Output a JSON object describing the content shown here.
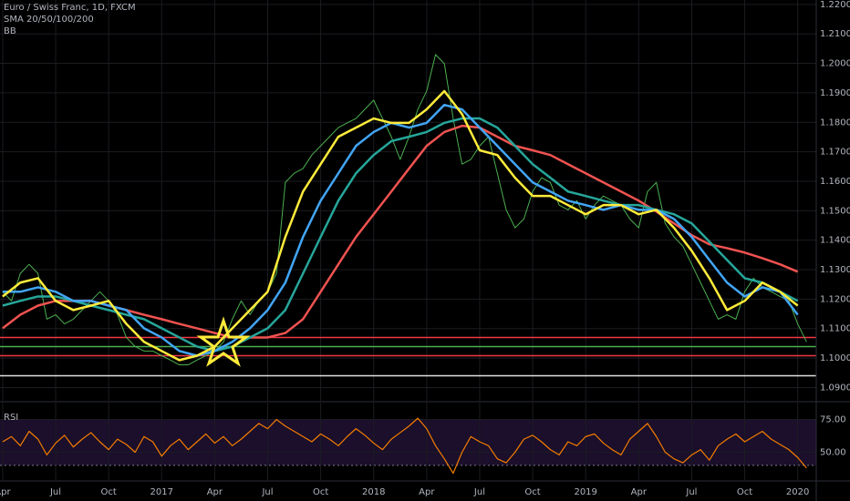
{
  "chart_data": [
    {
      "type": "line",
      "title": "Euro / Swiss Franc, 1D, FXCM",
      "indicators": [
        "SMA 20/50/100/200",
        "BB"
      ],
      "background": "#000000",
      "grid": true,
      "grid_color": "#1c1c22",
      "xlim": [
        -0.15,
        46.05
      ],
      "ylim": [
        1.0855,
        1.2215
      ],
      "xticks": [
        {
          "value": 0,
          "label": "Apr"
        },
        {
          "value": 3,
          "label": "Jul"
        },
        {
          "value": 6,
          "label": "Oct"
        },
        {
          "value": 9,
          "label": "2017"
        },
        {
          "value": 12,
          "label": "Apr"
        },
        {
          "value": 15,
          "label": "Jul"
        },
        {
          "value": 18,
          "label": "Oct"
        },
        {
          "value": 21,
          "label": "2018"
        },
        {
          "value": 24,
          "label": "Apr"
        },
        {
          "value": 27,
          "label": "Jul"
        },
        {
          "value": 30,
          "label": "Oct"
        },
        {
          "value": 33,
          "label": "2019"
        },
        {
          "value": 36,
          "label": "Apr"
        },
        {
          "value": 39,
          "label": "Jul"
        },
        {
          "value": 42,
          "label": "Oct"
        },
        {
          "value": 45,
          "label": "2020"
        }
      ],
      "yticks": [
        {
          "value": 1.09,
          "label": "1.0900"
        },
        {
          "value": 1.1,
          "label": "1.1000"
        },
        {
          "value": 1.11,
          "label": "1.1100"
        },
        {
          "value": 1.12,
          "label": "1.1200"
        },
        {
          "value": 1.13,
          "label": "1.1300"
        },
        {
          "value": 1.14,
          "label": "1.1400"
        },
        {
          "value": 1.15,
          "label": "1.1500"
        },
        {
          "value": 1.16,
          "label": "1.1600"
        },
        {
          "value": 1.17,
          "label": "1.1700"
        },
        {
          "value": 1.18,
          "label": "1.1800"
        },
        {
          "value": 1.19,
          "label": "1.1900"
        },
        {
          "value": 1.2,
          "label": "1.2000"
        },
        {
          "value": 1.21,
          "label": "1.2100"
        },
        {
          "value": 1.22,
          "label": "1.2200"
        }
      ],
      "hlines": [
        {
          "value": 1.107,
          "color": "#f23645"
        },
        {
          "value": 1.1039,
          "color": "#4caf50"
        },
        {
          "value": 1.1008,
          "color": "#f23645"
        },
        {
          "value": 1.094,
          "color": "#e0e0e0"
        }
      ],
      "x": [
        0,
        1,
        2,
        3,
        4,
        5,
        6,
        7,
        8,
        9,
        10,
        11,
        12,
        13,
        14,
        15,
        16,
        17,
        18,
        19,
        20,
        21,
        22,
        23,
        24,
        25,
        26,
        27,
        28,
        29,
        30,
        31,
        32,
        33,
        34,
        35,
        36,
        37,
        38,
        39,
        40,
        41,
        42,
        43,
        44,
        45
      ],
      "series": [
        {
          "color": "#4caf50",
          "width": 1,
          "x": [
            0,
            0.5,
            1,
            1.5,
            2,
            2.5,
            3,
            3.5,
            4,
            4.5,
            5,
            5.5,
            6,
            6.5,
            7,
            7.5,
            8,
            8.5,
            9,
            9.5,
            10,
            10.5,
            11,
            11.5,
            12,
            12.5,
            13,
            13.5,
            14,
            14.5,
            15,
            15.5,
            16,
            16.5,
            17,
            17.5,
            18,
            18.5,
            19,
            19.5,
            20,
            20.5,
            21,
            21.5,
            22,
            22.5,
            23,
            23.5,
            24,
            24.5,
            25,
            25.5,
            26,
            26.5,
            27,
            27.5,
            28,
            28.5,
            29,
            29.5,
            30,
            30.5,
            31,
            31.5,
            32,
            32.5,
            33,
            33.5,
            34,
            34.5,
            35,
            35.5,
            36,
            36.5,
            37,
            37.5,
            38,
            38.5,
            39,
            39.5,
            40,
            40.5,
            41,
            41.5,
            42,
            42.5,
            43,
            43.5,
            44,
            44.5,
            45,
            45.5
          ],
          "values": [
            1.1225,
            1.1194,
            1.1287,
            1.1318,
            1.1287,
            1.1132,
            1.1147,
            1.1116,
            1.1132,
            1.1163,
            1.1194,
            1.1225,
            1.1194,
            1.1147,
            1.107,
            1.1039,
            1.1024,
            1.1024,
            1.1008,
            1.0993,
            1.0977,
            1.0977,
            1.0993,
            1.1008,
            1.1024,
            1.1055,
            1.1132,
            1.1194,
            1.1147,
            1.1194,
            1.1225,
            1.1287,
            1.1596,
            1.1627,
            1.1643,
            1.1689,
            1.172,
            1.1751,
            1.1782,
            1.1798,
            1.1813,
            1.1844,
            1.1875,
            1.1813,
            1.1751,
            1.1674,
            1.1751,
            1.1844,
            1.1906,
            1.203,
            1.1999,
            1.1813,
            1.1658,
            1.1674,
            1.172,
            1.1751,
            1.1627,
            1.1503,
            1.1442,
            1.1472,
            1.1565,
            1.1612,
            1.1596,
            1.1519,
            1.1503,
            1.1534,
            1.1472,
            1.1519,
            1.155,
            1.1534,
            1.1519,
            1.1472,
            1.1442,
            1.1565,
            1.1596,
            1.1457,
            1.1411,
            1.138,
            1.1318,
            1.1256,
            1.1194,
            1.1132,
            1.1147,
            1.1132,
            1.1225,
            1.1271,
            1.124,
            1.1225,
            1.1209,
            1.1194,
            1.1116,
            1.1055
          ]
        },
        {
          "color": "#ef5350",
          "width": 2.5,
          "values": [
            1.1101,
            1.1147,
            1.1178,
            1.1194,
            1.1194,
            1.1194,
            1.1178,
            1.1163,
            1.1147,
            1.1132,
            1.1116,
            1.1101,
            1.1085,
            1.107,
            1.107,
            1.107,
            1.1085,
            1.1132,
            1.1225,
            1.1318,
            1.1411,
            1.1488,
            1.1565,
            1.1643,
            1.172,
            1.1767,
            1.1788,
            1.1782,
            1.1751,
            1.172,
            1.1705,
            1.1689,
            1.1658,
            1.1627,
            1.1596,
            1.1565,
            1.1534,
            1.1497,
            1.1457,
            1.1417,
            1.1386,
            1.1373,
            1.1358,
            1.1339,
            1.1318,
            1.1293
          ]
        },
        {
          "color": "#26a69a",
          "width": 2.5,
          "values": [
            1.1178,
            1.1194,
            1.1209,
            1.1209,
            1.1194,
            1.1178,
            1.1163,
            1.1147,
            1.1132,
            1.1101,
            1.107,
            1.1039,
            1.1024,
            1.1039,
            1.107,
            1.1101,
            1.1163,
            1.1287,
            1.1411,
            1.1534,
            1.1627,
            1.1689,
            1.1736,
            1.1751,
            1.1767,
            1.1798,
            1.1813,
            1.1813,
            1.1782,
            1.172,
            1.1658,
            1.1612,
            1.1565,
            1.155,
            1.1534,
            1.1519,
            1.1519,
            1.1503,
            1.1488,
            1.1457,
            1.1395,
            1.1333,
            1.1271,
            1.1256,
            1.1225,
            1.1194
          ]
        },
        {
          "color": "#42a5f5",
          "width": 2.5,
          "values": [
            1.1225,
            1.1225,
            1.124,
            1.1225,
            1.1194,
            1.1194,
            1.1178,
            1.1163,
            1.1101,
            1.107,
            1.1024,
            1.1008,
            1.1024,
            1.1055,
            1.1101,
            1.1163,
            1.1256,
            1.1411,
            1.1534,
            1.1627,
            1.172,
            1.1767,
            1.1798,
            1.1782,
            1.1798,
            1.1859,
            1.1844,
            1.1782,
            1.172,
            1.1658,
            1.1596,
            1.1565,
            1.1534,
            1.1519,
            1.1503,
            1.1519,
            1.1503,
            1.1503,
            1.1472,
            1.1411,
            1.1333,
            1.1256,
            1.1209,
            1.124,
            1.1225,
            1.1147
          ]
        },
        {
          "color": "#ffeb3b",
          "width": 2.5,
          "values": [
            1.1209,
            1.1256,
            1.1271,
            1.1194,
            1.1163,
            1.1178,
            1.1194,
            1.1116,
            1.1055,
            1.1024,
            1.0993,
            1.1008,
            1.1039,
            1.1101,
            1.1163,
            1.1225,
            1.1411,
            1.1565,
            1.1658,
            1.1751,
            1.1782,
            1.1813,
            1.1798,
            1.1798,
            1.1844,
            1.1906,
            1.1828,
            1.1705,
            1.1689,
            1.1612,
            1.155,
            1.155,
            1.1519,
            1.1488,
            1.1519,
            1.1519,
            1.1488,
            1.1503,
            1.1442,
            1.1364,
            1.1271,
            1.1163,
            1.1194,
            1.1256,
            1.1225,
            1.1178
          ]
        }
      ]
    },
    {
      "type": "line",
      "title": "RSI",
      "grid": true,
      "grid_color": "#1c1c22",
      "xlim": [
        -0.15,
        46.05
      ],
      "ylim": [
        28.8,
        87.9
      ],
      "yticks": [
        {
          "value": 75,
          "label": "75.00"
        },
        {
          "value": 50,
          "label": "50.00"
        }
      ],
      "bands": [
        40,
        75
      ],
      "band_color": "#1b0f2b",
      "x": [
        0,
        0.5,
        1,
        1.5,
        2,
        2.5,
        3,
        3.5,
        4,
        4.5,
        5,
        5.5,
        6,
        6.5,
        7,
        7.5,
        8,
        8.5,
        9,
        9.5,
        10,
        10.5,
        11,
        11.5,
        12,
        12.5,
        13,
        13.5,
        14,
        14.5,
        15,
        15.5,
        16,
        16.5,
        17,
        17.5,
        18,
        18.5,
        19,
        19.5,
        20,
        20.5,
        21,
        21.5,
        22,
        22.5,
        23,
        23.5,
        24,
        24.5,
        25,
        25.5,
        26,
        26.5,
        27,
        27.5,
        28,
        28.5,
        29,
        29.5,
        30,
        30.5,
        31,
        31.5,
        32,
        32.5,
        33,
        33.5,
        34,
        34.5,
        35,
        35.5,
        36,
        36.5,
        37,
        37.5,
        38,
        38.5,
        39,
        39.5,
        40,
        40.5,
        41,
        41.5,
        42,
        42.5,
        43,
        43.5,
        44,
        44.5,
        45,
        45.5
      ],
      "series": [
        {
          "color": "#f57c00",
          "width": 1.2,
          "values": [
            58,
            62,
            55,
            66,
            60,
            48,
            57,
            63,
            54,
            60,
            65,
            58,
            52,
            60,
            56,
            50,
            62,
            58,
            47,
            55,
            60,
            52,
            58,
            64,
            57,
            62,
            55,
            60,
            66,
            72,
            68,
            75,
            70,
            66,
            62,
            58,
            64,
            60,
            55,
            62,
            68,
            63,
            57,
            52,
            60,
            65,
            70,
            76,
            68,
            55,
            45,
            34,
            50,
            62,
            58,
            55,
            45,
            42,
            50,
            60,
            63,
            58,
            52,
            48,
            58,
            55,
            62,
            64,
            57,
            52,
            48,
            60,
            66,
            72,
            62,
            50,
            45,
            42,
            48,
            52,
            44,
            55,
            60,
            64,
            58,
            62,
            66,
            60,
            56,
            52,
            46,
            38
          ]
        }
      ]
    }
  ]
}
